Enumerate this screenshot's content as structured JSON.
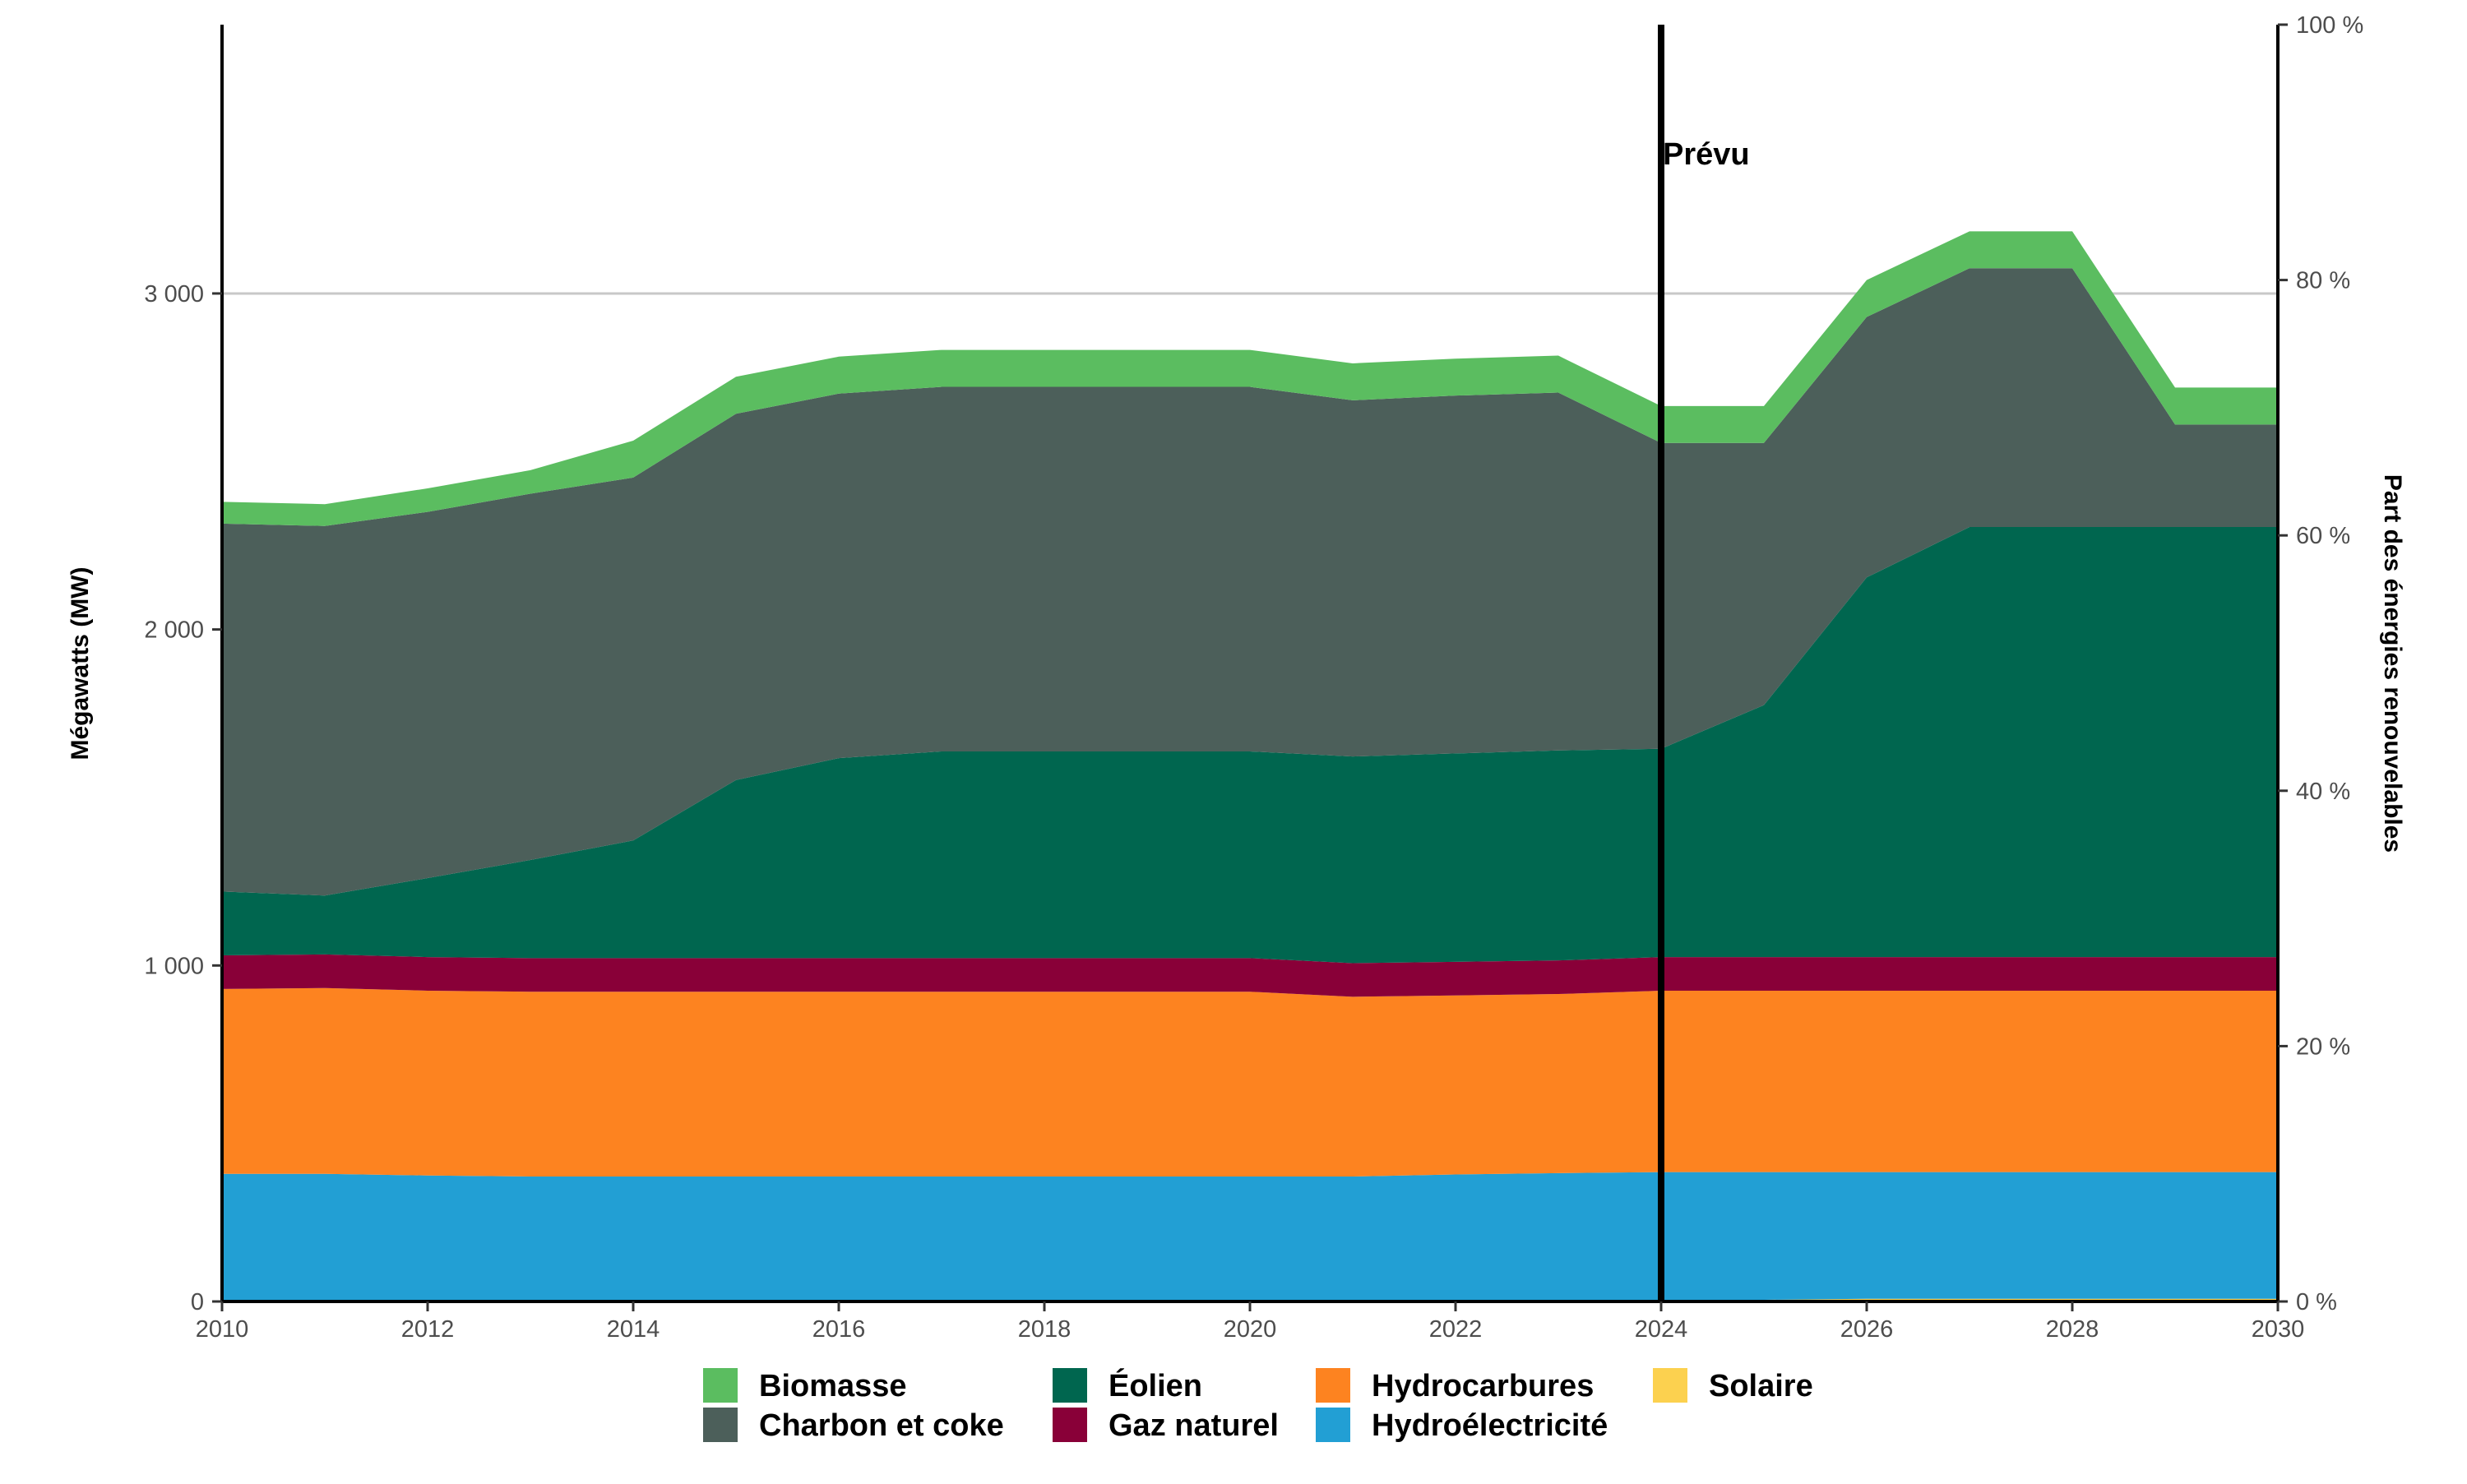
{
  "chart_data": {
    "type": "area",
    "stacked": true,
    "x": [
      2010,
      2011,
      2012,
      2013,
      2014,
      2015,
      2016,
      2017,
      2018,
      2019,
      2020,
      2021,
      2022,
      2023,
      2024,
      2025,
      2026,
      2027,
      2028,
      2029,
      2030
    ],
    "xticks": [
      2010,
      2012,
      2014,
      2016,
      2018,
      2020,
      2022,
      2024,
      2026,
      2028,
      2030
    ],
    "xlim": [
      2010,
      2030
    ],
    "ylabel": "Mégawatts (MW)",
    "ylim": [
      0,
      3800
    ],
    "yticks": [
      0,
      1000,
      2000,
      3000
    ],
    "ytick_labels": [
      "0",
      "1 000",
      "2 000",
      "3 000"
    ],
    "y2label": "Part des énergies renouvelables",
    "y2lim": [
      0,
      100
    ],
    "y2ticks": [
      0,
      20,
      40,
      60,
      80,
      100
    ],
    "y2tick_labels": [
      "0 %",
      "20 %",
      "40 %",
      "60 %",
      "80 %",
      "100 %"
    ],
    "grid": "horizontal line at 3 000 only",
    "vline": {
      "x": 2024,
      "label": "Prévu"
    },
    "legend_position": "bottom",
    "series": [
      {
        "name": "Solaire",
        "color": "#fcd14f",
        "values": [
          0,
          0,
          0,
          0,
          0,
          0,
          0,
          0,
          0,
          0,
          0,
          0,
          0,
          0,
          5,
          5,
          8,
          8,
          8,
          8,
          8
        ]
      },
      {
        "name": "Hydroélectricité",
        "color": "#229fd4",
        "values": [
          380,
          380,
          375,
          372,
          372,
          372,
          372,
          372,
          372,
          372,
          372,
          372,
          378,
          382,
          380,
          380,
          377,
          377,
          377,
          377,
          377
        ]
      },
      {
        "name": "Hydrocarbures",
        "color": "#fd8320",
        "values": [
          550,
          553,
          550,
          550,
          550,
          550,
          550,
          550,
          550,
          550,
          550,
          535,
          533,
          533,
          540,
          540,
          540,
          540,
          540,
          540,
          540
        ]
      },
      {
        "name": "Gaz naturel",
        "color": "#890038",
        "values": [
          100,
          100,
          100,
          100,
          100,
          100,
          100,
          100,
          100,
          100,
          100,
          100,
          100,
          100,
          100,
          100,
          100,
          100,
          100,
          100,
          100
        ]
      },
      {
        "name": "Éolien",
        "color": "#00664f",
        "values": [
          190,
          175,
          235,
          292,
          350,
          530,
          595,
          615,
          615,
          615,
          615,
          615,
          620,
          625,
          620,
          750,
          1130,
          1280,
          1280,
          1280,
          1280
        ]
      },
      {
        "name": "Charbon et coke",
        "color": "#4c5f5a",
        "values": [
          1095,
          1100,
          1090,
          1090,
          1080,
          1090,
          1085,
          1085,
          1085,
          1085,
          1085,
          1060,
          1065,
          1065,
          910,
          780,
          775,
          770,
          770,
          305,
          305
        ]
      },
      {
        "name": "Biomasse",
        "color": "#5bbd60",
        "values": [
          65,
          65,
          70,
          70,
          110,
          110,
          110,
          110,
          110,
          110,
          110,
          110,
          110,
          110,
          110,
          110,
          110,
          110,
          110,
          110,
          110
        ]
      }
    ],
    "legend": {
      "columns": [
        [
          "Biomasse",
          "Charbon et coke"
        ],
        [
          "Éolien",
          "Gaz naturel"
        ],
        [
          "Hydrocarbures",
          "Hydroélectricité"
        ],
        [
          "Solaire"
        ]
      ]
    }
  }
}
